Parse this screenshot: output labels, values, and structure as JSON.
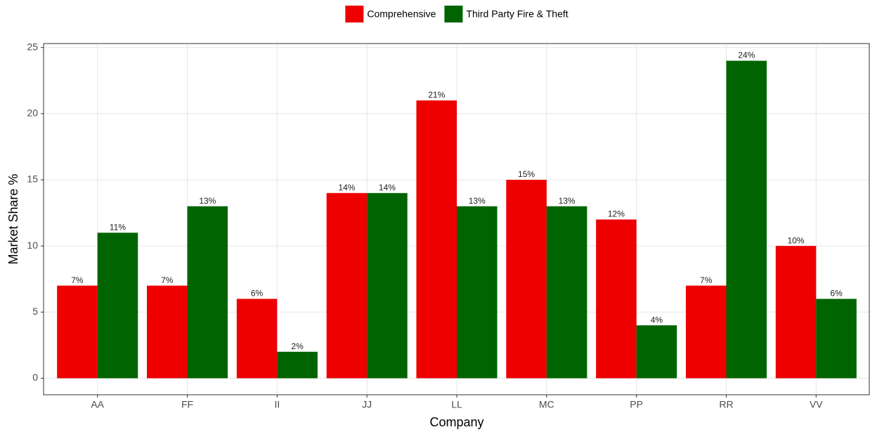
{
  "chart_data": {
    "type": "grouped_bar",
    "x_label": "Company",
    "y_label": "Market Share %",
    "categories": [
      "AA",
      "FF",
      "II",
      "JJ",
      "LL",
      "MC",
      "PP",
      "RR",
      "VV"
    ],
    "series": [
      {
        "name": "Comprehensive",
        "color": "#ee0000",
        "values": [
          7,
          7,
          6,
          14,
          21,
          15,
          12,
          7,
          10
        ],
        "value_labels": [
          "7%",
          "7%",
          "6%",
          "14%",
          "21%",
          "15%",
          "12%",
          "7%",
          "10%"
        ]
      },
      {
        "name": "Third Party Fire & Theft",
        "color": "#006400",
        "values": [
          11,
          13,
          2,
          14,
          13,
          13,
          4,
          24,
          6
        ],
        "value_labels": [
          "11%",
          "13%",
          "2%",
          "14%",
          "13%",
          "13%",
          "4%",
          "24%",
          "6%"
        ]
      }
    ],
    "ylim": [
      -1.25,
      25.3
    ],
    "yticks": [
      0,
      5,
      10,
      15,
      20,
      25
    ],
    "grid": true,
    "legend": "top"
  }
}
